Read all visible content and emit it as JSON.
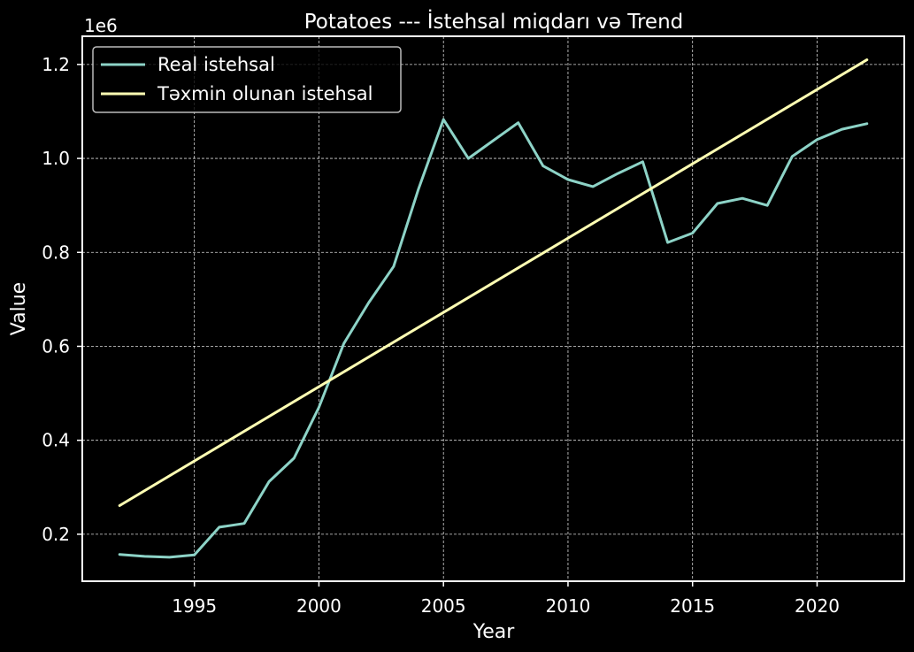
{
  "chart_data": {
    "type": "line",
    "title": "Potatoes --- İstehsal miqdarı və Trend",
    "xlabel": "Year",
    "ylabel": "Value",
    "y_scale_label": "1e6",
    "x_ticks": [
      1995,
      2000,
      2005,
      2010,
      2015,
      2020
    ],
    "y_ticks": [
      0.2,
      0.4,
      0.6,
      0.8,
      1.0,
      1.2
    ],
    "y_tick_labels": [
      "0.2",
      "0.4",
      "0.6",
      "0.8",
      "1.0",
      "1.2"
    ],
    "xlim": [
      1990.5,
      2023.5
    ],
    "ylim": [
      0.1,
      1.26
    ],
    "grid": true,
    "legend_position": "top-left",
    "series": [
      {
        "name": "Real istehsal",
        "color": "#8dd3c7",
        "x": [
          1992,
          1993,
          1994,
          1995,
          1996,
          1997,
          1998,
          1999,
          2000,
          2001,
          2002,
          2003,
          2004,
          2005,
          2006,
          2007,
          2008,
          2009,
          2010,
          2011,
          2012,
          2013,
          2014,
          2015,
          2016,
          2017,
          2018,
          2019,
          2020,
          2021,
          2022
        ],
        "y": [
          0.157,
          0.153,
          0.151,
          0.156,
          0.215,
          0.223,
          0.312,
          0.362,
          0.47,
          0.606,
          0.693,
          0.77,
          0.935,
          1.083,
          1.0,
          1.038,
          1.076,
          0.984,
          0.955,
          0.94,
          0.968,
          0.993,
          0.821,
          0.841,
          0.904,
          0.915,
          0.9,
          1.004,
          1.04,
          1.062,
          1.074
        ]
      },
      {
        "name": "Təxmin olunan istehsal",
        "color": "#ffffb3",
        "x": [
          1992,
          2022
        ],
        "y": [
          0.261,
          1.21
        ]
      }
    ]
  }
}
